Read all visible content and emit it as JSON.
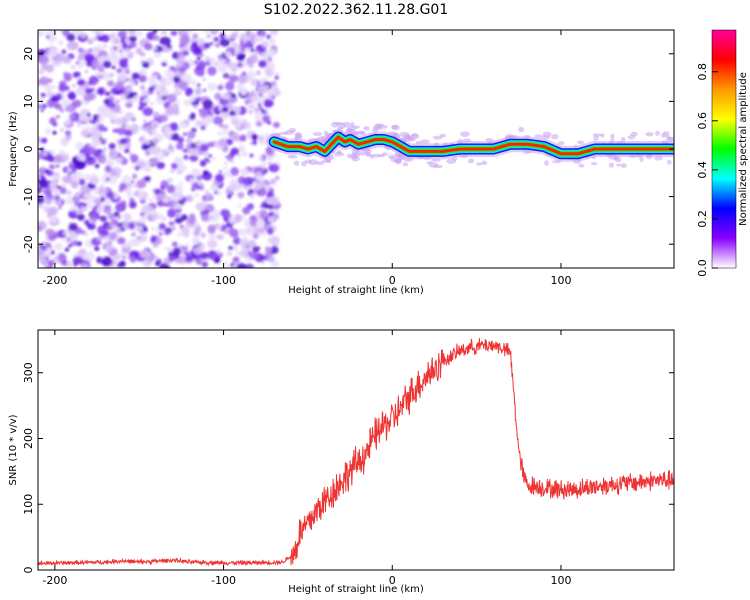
{
  "title": "S102.2022.362.11.28.G01",
  "spectrogram": {
    "type": "heatmap",
    "xlabel": "Height of straight line (km)",
    "ylabel": "Frequency (Hz)",
    "xlim": [
      -210,
      167
    ],
    "ylim": [
      -25,
      25
    ],
    "xticks": [
      -200,
      -100,
      0,
      100
    ],
    "yticks": [
      -20,
      -10,
      0,
      10,
      20
    ],
    "colorbar": {
      "label": "Normalized spectral amplitude",
      "range": [
        0,
        0.97
      ],
      "ticks": [
        0.0,
        0.2,
        0.4,
        0.6,
        0.8
      ],
      "colormap": [
        "#ff0099",
        "#ff0000",
        "#ff9900",
        "#ffff00",
        "#00ff00",
        "#00ffff",
        "#0000ff",
        "#8800ff",
        "#ffffff"
      ]
    },
    "noise_region_x": [
      -210,
      -68
    ],
    "signal_trace": {
      "x": [
        -70,
        -62,
        -55,
        -50,
        -45,
        -40,
        -36,
        -32,
        -28,
        -25,
        -20,
        -15,
        -10,
        -5,
        0,
        5,
        10,
        20,
        30,
        40,
        50,
        60,
        70,
        80,
        90,
        100,
        110,
        120,
        130,
        140,
        150,
        160,
        167
      ],
      "y": [
        1.5,
        0.5,
        0.5,
        0.0,
        0.5,
        -0.5,
        1.0,
        2.5,
        1.5,
        2.0,
        1.0,
        1.5,
        2.0,
        2.0,
        1.5,
        0.5,
        -0.5,
        -0.5,
        -0.5,
        0.0,
        0.0,
        0.0,
        1.0,
        1.0,
        0.5,
        -1.0,
        -1.0,
        0.0,
        0.0,
        0.0,
        0.0,
        0.0,
        0.0
      ]
    }
  },
  "chart_data": {
    "type": "line",
    "xlabel": "Height of straight line (km)",
    "ylabel": "SNR (10 * v/v)",
    "xlim": [
      -210,
      167
    ],
    "ylim": [
      0,
      365
    ],
    "xticks": [
      -200,
      -100,
      0,
      100
    ],
    "yticks": [
      0,
      100,
      200,
      300
    ],
    "color": "#ee3333",
    "series": [
      {
        "x": [
          -210,
          -190,
          -170,
          -160,
          -150,
          -130,
          -120,
          -100,
          -80,
          -65,
          -58,
          -55,
          -50,
          -45,
          -40,
          -35,
          -30,
          -25,
          -20,
          -15,
          -10,
          -5,
          0,
          5,
          10,
          15,
          20,
          25,
          30,
          35,
          40,
          45,
          50,
          55,
          60,
          65,
          70,
          72,
          75,
          78,
          80,
          90,
          100,
          110,
          120,
          130,
          140,
          150,
          160,
          167
        ],
        "y": [
          10,
          11,
          12,
          14,
          12,
          15,
          12,
          11,
          11,
          12,
          25,
          55,
          70,
          90,
          105,
          120,
          135,
          150,
          165,
          180,
          205,
          220,
          230,
          245,
          265,
          280,
          295,
          305,
          318,
          325,
          333,
          338,
          340,
          342,
          342,
          338,
          330,
          270,
          180,
          140,
          130,
          125,
          122,
          123,
          127,
          130,
          132,
          135,
          137,
          135
        ]
      }
    ]
  }
}
